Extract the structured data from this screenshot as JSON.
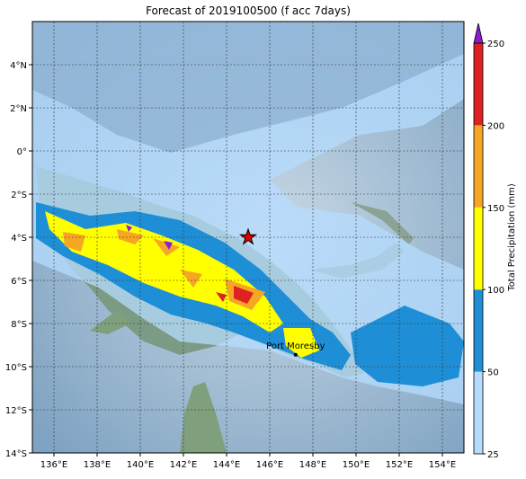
{
  "map": {
    "title": "Forecast of 2019100500 (f acc 7days)",
    "lonlim": [
      135,
      155
    ],
    "latlim": [
      -14,
      6
    ],
    "lon_ticks": [
      {
        "value": 136,
        "label": "136°E"
      },
      {
        "value": 138,
        "label": "138°E"
      },
      {
        "value": 140,
        "label": "140°E"
      },
      {
        "value": 142,
        "label": "142°E"
      },
      {
        "value": 144,
        "label": "144°E"
      },
      {
        "value": 146,
        "label": "146°E"
      },
      {
        "value": 148,
        "label": "148°E"
      },
      {
        "value": 150,
        "label": "150°E"
      },
      {
        "value": 152,
        "label": "152°E"
      },
      {
        "value": 154,
        "label": "154°E"
      }
    ],
    "lat_ticks": [
      {
        "value": 4,
        "label": "4°N"
      },
      {
        "value": 2,
        "label": "2°N"
      },
      {
        "value": 0,
        "label": "0°"
      },
      {
        "value": -2,
        "label": "2°S"
      },
      {
        "value": -4,
        "label": "4°S"
      },
      {
        "value": -6,
        "label": "6°S"
      },
      {
        "value": -8,
        "label": "8°S"
      },
      {
        "value": -10,
        "label": "10°S"
      },
      {
        "value": -12,
        "label": "12°S"
      },
      {
        "value": -14,
        "label": "14°S"
      }
    ],
    "grid": true,
    "colorbar": {
      "label": "Total Precipitation (mm)",
      "ticks": [
        25,
        50,
        100,
        150,
        200,
        250
      ],
      "colors": [
        "#b5dcff",
        "#1e8fd6",
        "#ffff00",
        "#f5a623",
        "#dd2222"
      ],
      "extend_color": "#8a1ecf"
    },
    "marker": {
      "lon": 145,
      "lat": -4,
      "color": "#e00000"
    },
    "places": [
      {
        "name": "Port Moresby",
        "lon": 147.2,
        "lat": -9.45
      }
    ]
  }
}
